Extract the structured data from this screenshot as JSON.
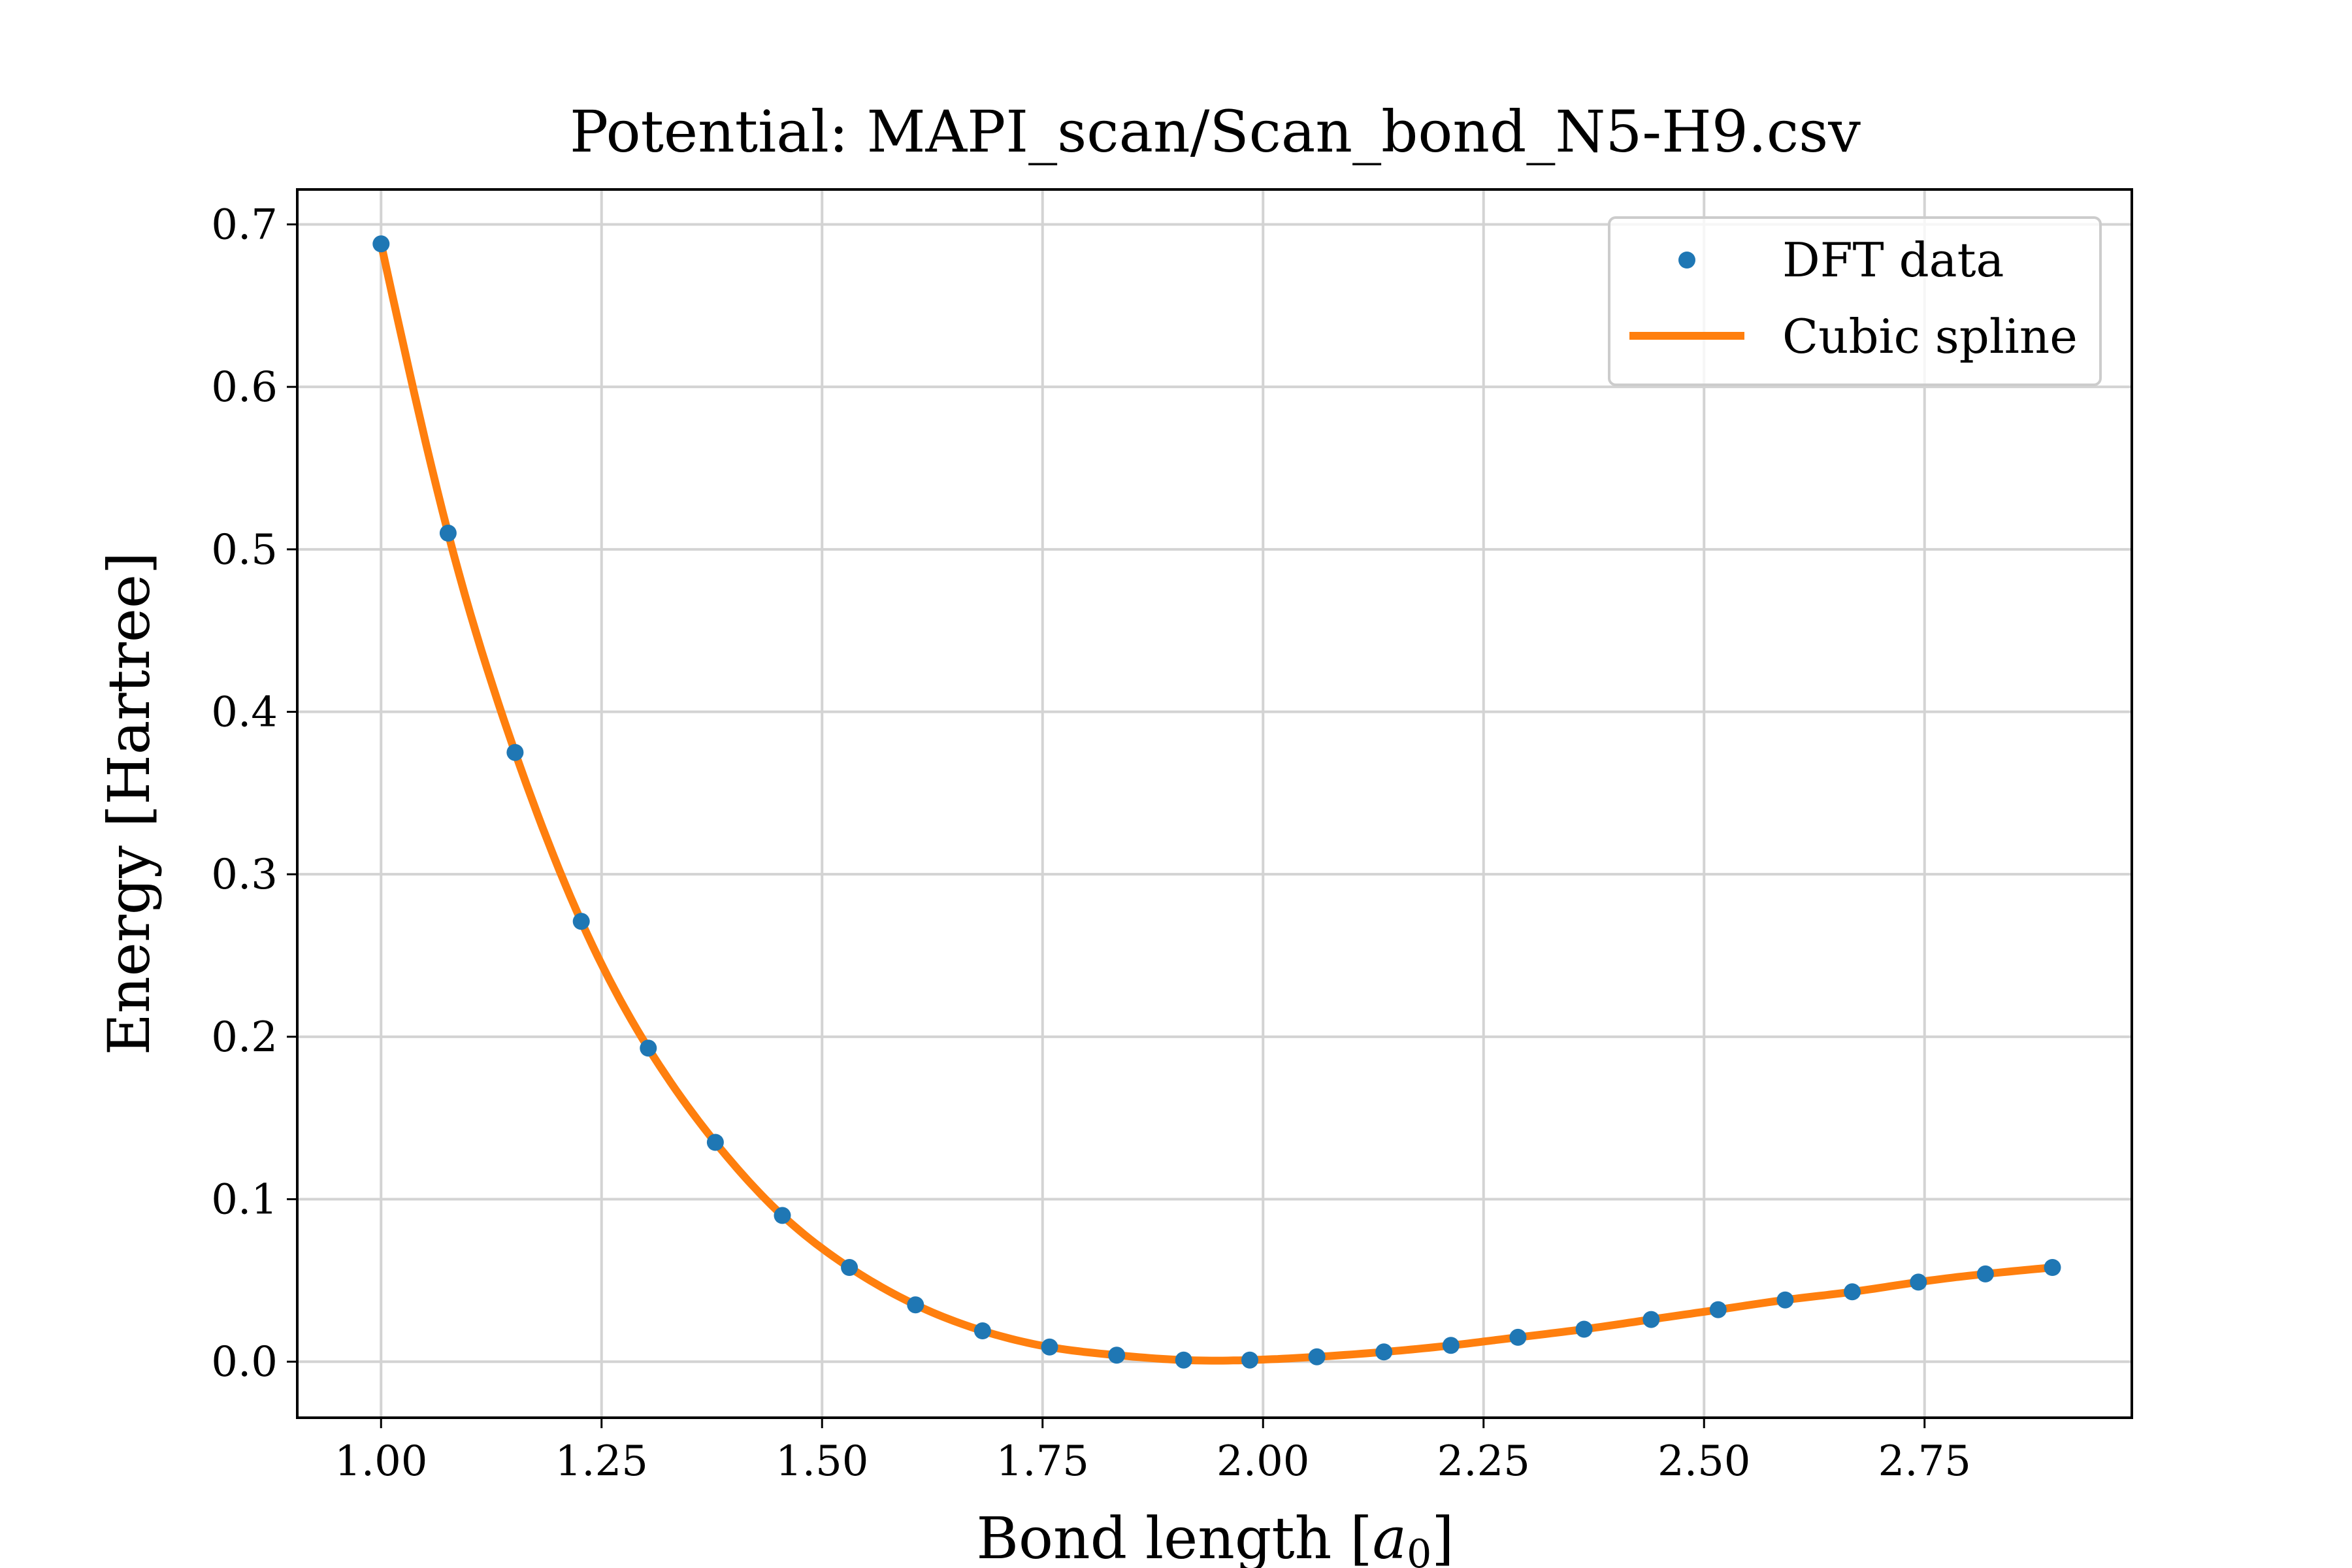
{
  "chart_data": {
    "type": "line",
    "title": "Potential: MAPI_scan/Scan_bond_N5-H9.csv",
    "xlabel": "Bond length [a0]",
    "xlabel_parts": {
      "main": "Bond length [",
      "symbol": "a",
      "subscript": "0",
      "close": "]"
    },
    "ylabel": "Energy [Hartree]",
    "xlim": [
      0.905,
      2.985
    ],
    "ylim": [
      -0.0345,
      0.7215
    ],
    "xticks": [
      1.0,
      1.25,
      1.5,
      1.75,
      2.0,
      2.25,
      2.5,
      2.75
    ],
    "xtick_labels": [
      "1.00",
      "1.25",
      "1.50",
      "1.75",
      "2.00",
      "2.25",
      "2.50",
      "2.75"
    ],
    "yticks": [
      0.0,
      0.1,
      0.2,
      0.3,
      0.4,
      0.5,
      0.6,
      0.7
    ],
    "ytick_labels": [
      "0.0",
      "0.1",
      "0.2",
      "0.3",
      "0.4",
      "0.5",
      "0.6",
      "0.7"
    ],
    "grid": true,
    "legend_position": "top-right",
    "series": [
      {
        "name": "DFT data",
        "kind": "scatter",
        "color": "#1f77b4",
        "x": [
          1.0,
          1.076,
          1.152,
          1.227,
          1.303,
          1.379,
          1.455,
          1.531,
          1.606,
          1.682,
          1.758,
          1.834,
          1.91,
          1.985,
          2.061,
          2.137,
          2.213,
          2.289,
          2.364,
          2.44,
          2.516,
          2.592,
          2.668,
          2.743,
          2.819,
          2.895
        ],
        "y": [
          0.688,
          0.51,
          0.375,
          0.271,
          0.193,
          0.135,
          0.09,
          0.058,
          0.035,
          0.019,
          0.009,
          0.004,
          0.001,
          0.001,
          0.003,
          0.006,
          0.01,
          0.015,
          0.02,
          0.026,
          0.032,
          0.038,
          0.043,
          0.049,
          0.054,
          0.058
        ]
      },
      {
        "name": "Cubic spline",
        "kind": "line",
        "color": "#ff7f0e"
      }
    ]
  }
}
